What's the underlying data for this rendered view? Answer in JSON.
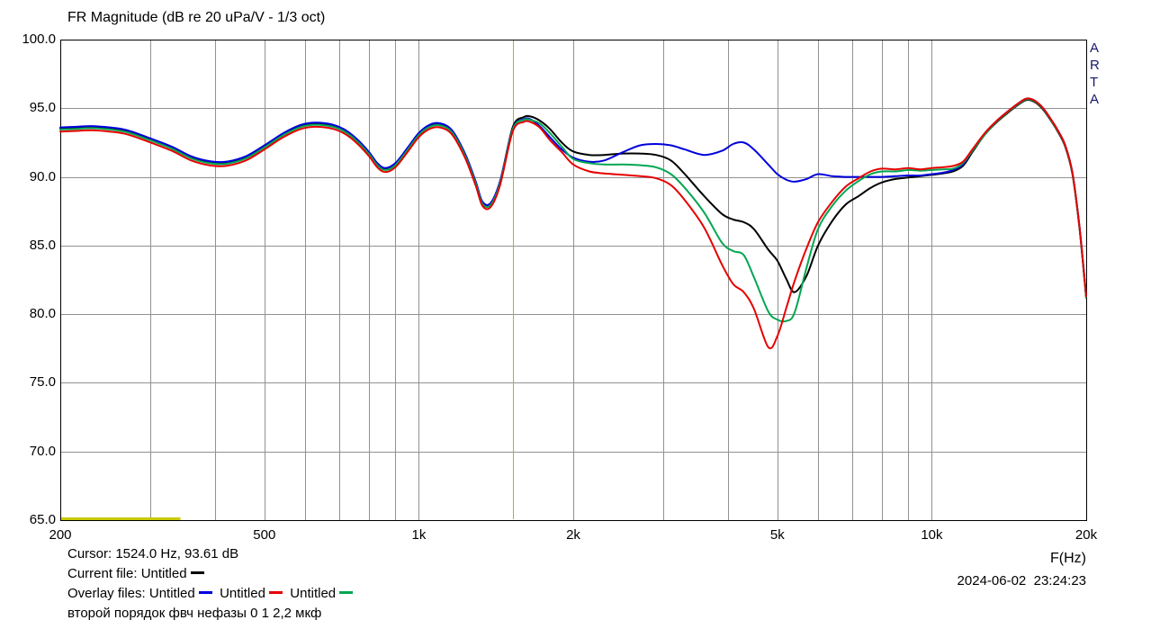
{
  "title": "FR Magnitude (dB re 20 uPa/V - 1/3 oct)",
  "watermark": "ARTA",
  "footer": {
    "cursor_text": "Cursor: 1524.0 Hz, 93.61 dB",
    "current_file_label": "Current file: ",
    "current_file": {
      "name": "Untitled",
      "color": "#000000"
    },
    "overlay_files_label": "Overlay files: ",
    "overlay_files": [
      {
        "name": "Untitled",
        "color": "#0000dd"
      },
      {
        "name": "Untitled",
        "color": "#e60000"
      },
      {
        "name": "Untitled",
        "color": "#00a651"
      }
    ],
    "note": "второй порядок фвч нефазы 0 1 2,2 мкф",
    "x_axis_label": "F(Hz)",
    "datetime": "2024-06-02  23:24:23"
  },
  "chart_data": {
    "type": "line",
    "title": "FR Magnitude (dB re 20 uPa/V - 1/3 oct)",
    "xlabel": "F(Hz)",
    "ylabel": "dB re 20 uPa/V",
    "x_scale": "log",
    "xlim": [
      200,
      20000
    ],
    "ylim": [
      65.0,
      100.0
    ],
    "grid": true,
    "grid_color": "#919191",
    "border_color": "#000000",
    "y_ticks": [
      {
        "value": 100,
        "label": "100.0"
      },
      {
        "value": 95,
        "label": "95.0"
      },
      {
        "value": 90,
        "label": "90.0"
      },
      {
        "value": 85,
        "label": "85.0"
      },
      {
        "value": 80,
        "label": "80.0"
      },
      {
        "value": 75,
        "label": "75.0"
      },
      {
        "value": 70,
        "label": "70.0"
      },
      {
        "value": 65,
        "label": "65.0"
      }
    ],
    "x_ticks": [
      {
        "value": 200,
        "label": "200"
      },
      {
        "value": 500,
        "label": "500"
      },
      {
        "value": 1000,
        "label": "1k"
      },
      {
        "value": 2000,
        "label": "2k"
      },
      {
        "value": 5000,
        "label": "5k"
      },
      {
        "value": 10000,
        "label": "10k"
      },
      {
        "value": 20000,
        "label": "20k"
      }
    ],
    "x_grid": [
      300,
      400,
      500,
      600,
      700,
      800,
      900,
      1000,
      2000,
      3000,
      4000,
      5000,
      6000,
      7000,
      8000,
      9000,
      10000
    ],
    "y_grid": [
      70,
      75,
      80,
      85,
      90,
      95
    ],
    "cursor": {
      "freq_hz": 1524.0,
      "db": 93.61,
      "color": "#b8b400"
    },
    "range_marker": {
      "from_hz": 201,
      "to_hz": 343,
      "db": 65.15,
      "color": "#c9c900"
    },
    "freqs": [
      200,
      215,
      230,
      250,
      270,
      300,
      330,
      360,
      390,
      420,
      460,
      500,
      545,
      590,
      630,
      680,
      720,
      760,
      800,
      830,
      860,
      900,
      950,
      1000,
      1050,
      1100,
      1160,
      1230,
      1290,
      1330,
      1380,
      1440,
      1524,
      1600,
      1650,
      1720,
      1800,
      1900,
      2000,
      2150,
      2300,
      2500,
      2700,
      2900,
      3100,
      3300,
      3600,
      3900,
      4100,
      4300,
      4500,
      4800,
      5000,
      5200,
      5400,
      5700,
      6000,
      6400,
      6800,
      7200,
      7600,
      8000,
      8500,
      9000,
      9500,
      10000,
      10500,
      11000,
      11500,
      12000,
      12700,
      13400,
      14100,
      14800,
      15300,
      15800,
      16400,
      17000,
      17600,
      18200,
      18800,
      19400,
      20000
    ],
    "series": [
      {
        "name": "Untitled",
        "role": "current",
        "color": "#000000",
        "z": 1,
        "values": [
          93.5,
          93.55,
          93.6,
          93.5,
          93.3,
          92.7,
          92.1,
          91.4,
          91.05,
          91.0,
          91.4,
          92.2,
          93.1,
          93.7,
          93.85,
          93.7,
          93.3,
          92.6,
          91.7,
          90.9,
          90.55,
          90.9,
          92.0,
          93.1,
          93.7,
          93.8,
          93.3,
          91.6,
          89.6,
          88.1,
          88.0,
          89.6,
          93.61,
          94.35,
          94.4,
          94.1,
          93.5,
          92.5,
          91.85,
          91.6,
          91.6,
          91.7,
          91.7,
          91.6,
          91.2,
          90.2,
          88.6,
          87.3,
          86.9,
          86.7,
          86.2,
          84.7,
          83.9,
          82.6,
          81.6,
          82.8,
          85.0,
          86.8,
          88.0,
          88.6,
          89.2,
          89.6,
          89.85,
          89.95,
          90.05,
          90.15,
          90.25,
          90.4,
          90.8,
          91.8,
          93.1,
          94.0,
          94.7,
          95.3,
          95.6,
          95.5,
          95.0,
          94.2,
          93.3,
          92.2,
          90.2,
          86.3,
          81.2
        ]
      },
      {
        "name": "Untitled",
        "role": "overlay",
        "color": "#0000dd",
        "z": 2,
        "values": [
          93.6,
          93.65,
          93.7,
          93.6,
          93.4,
          92.8,
          92.2,
          91.5,
          91.15,
          91.1,
          91.5,
          92.3,
          93.2,
          93.8,
          93.95,
          93.8,
          93.4,
          92.7,
          91.8,
          91.0,
          90.65,
          91.0,
          92.1,
          93.2,
          93.8,
          93.9,
          93.4,
          91.7,
          89.7,
          88.2,
          88.1,
          89.7,
          93.5,
          94.2,
          94.2,
          93.7,
          92.9,
          92.0,
          91.4,
          91.1,
          91.2,
          91.8,
          92.3,
          92.4,
          92.3,
          92.0,
          91.6,
          91.9,
          92.4,
          92.5,
          92.0,
          90.9,
          90.2,
          89.8,
          89.65,
          89.85,
          90.2,
          90.05,
          90.0,
          90.0,
          90.0,
          90.0,
          90.05,
          90.1,
          90.1,
          90.2,
          90.3,
          90.5,
          90.9,
          91.9,
          93.2,
          94.1,
          94.8,
          95.4,
          95.7,
          95.6,
          95.1,
          94.3,
          93.4,
          92.3,
          90.3,
          86.4,
          81.3
        ]
      },
      {
        "name": "Untitled",
        "role": "overlay",
        "color": "#e60000",
        "z": 4,
        "values": [
          93.3,
          93.35,
          93.4,
          93.3,
          93.1,
          92.5,
          91.9,
          91.2,
          90.85,
          90.8,
          91.2,
          92.0,
          92.9,
          93.5,
          93.65,
          93.5,
          93.1,
          92.4,
          91.5,
          90.7,
          90.35,
          90.7,
          91.8,
          92.9,
          93.5,
          93.6,
          93.1,
          91.4,
          89.4,
          87.9,
          87.8,
          89.4,
          93.3,
          94.0,
          94.0,
          93.6,
          92.7,
          91.8,
          90.9,
          90.4,
          90.25,
          90.15,
          90.05,
          89.9,
          89.4,
          88.3,
          86.3,
          83.6,
          82.2,
          81.6,
          80.4,
          77.6,
          78.4,
          80.4,
          82.4,
          84.8,
          86.7,
          88.2,
          89.3,
          89.9,
          90.4,
          90.6,
          90.55,
          90.65,
          90.55,
          90.65,
          90.7,
          90.8,
          91.1,
          92.0,
          93.2,
          94.1,
          94.8,
          95.4,
          95.7,
          95.6,
          95.1,
          94.3,
          93.4,
          92.3,
          90.3,
          86.4,
          81.3
        ]
      },
      {
        "name": "Untitled",
        "role": "overlay",
        "color": "#00a651",
        "z": 3,
        "values": [
          93.45,
          93.5,
          93.55,
          93.45,
          93.25,
          92.65,
          92.05,
          91.35,
          91.0,
          90.95,
          91.35,
          92.15,
          93.05,
          93.65,
          93.8,
          93.65,
          93.25,
          92.55,
          91.65,
          90.85,
          90.5,
          90.85,
          91.95,
          93.05,
          93.65,
          93.75,
          93.25,
          91.55,
          89.55,
          88.05,
          87.95,
          89.55,
          93.45,
          94.15,
          94.15,
          93.9,
          93.2,
          92.2,
          91.3,
          91.0,
          90.9,
          90.9,
          90.85,
          90.7,
          90.2,
          89.2,
          87.4,
          85.2,
          84.6,
          84.3,
          82.7,
          80.2,
          79.6,
          79.5,
          80.1,
          83.4,
          86.2,
          87.9,
          89.0,
          89.7,
          90.2,
          90.4,
          90.4,
          90.5,
          90.45,
          90.5,
          90.55,
          90.6,
          91.0,
          91.9,
          93.1,
          94.05,
          94.75,
          95.35,
          95.65,
          95.55,
          95.05,
          94.25,
          93.35,
          92.25,
          90.25,
          86.35,
          81.25
        ]
      }
    ]
  }
}
